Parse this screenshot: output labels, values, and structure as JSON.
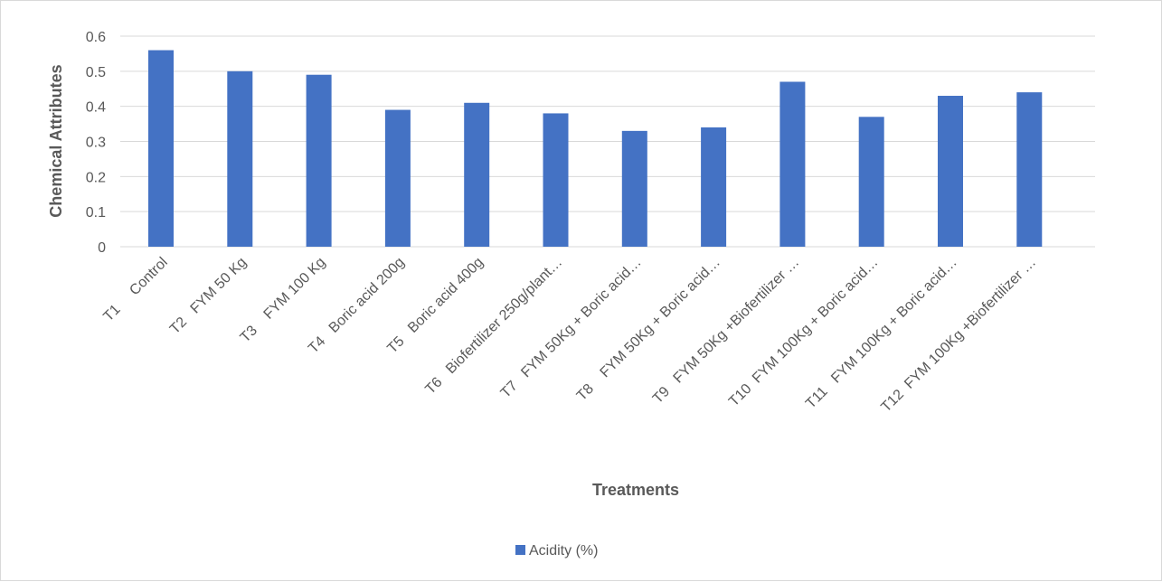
{
  "chart_data": {
    "type": "bar",
    "categories": [
      "T1     Control",
      "T2   FYM 50 Kg",
      "T3    FYM 100 Kg",
      "T4   Boric acid 200g",
      "T5   Boric acid 400g",
      "T6   Biofertilizer 250g/plant…",
      "T7   FYM 50Kg + Boric acid…",
      "T8    FYM 50Kg + Boric acid…",
      "T9   FYM 50Kg +Biofertilizer …",
      "T10  FYM 100Kg + Boric acid…",
      "T11   FYM 100Kg + Boric acid…",
      "T12  FYM 100Kg +Biofertilizer …"
    ],
    "series": [
      {
        "name": "Acidity (%)",
        "color": "#4472c4",
        "values": [
          0.56,
          0.5,
          0.49,
          0.39,
          0.41,
          0.38,
          0.33,
          0.34,
          0.47,
          0.37,
          0.43,
          0.44
        ]
      }
    ],
    "title": "",
    "xlabel": "Treatments",
    "ylabel": "Chemical Attributes",
    "ylim": [
      0,
      0.6
    ],
    "yticks": [
      "0",
      "0.1",
      "0.2",
      "0.3",
      "0.4",
      "0.5",
      "0.6"
    ],
    "grid": true,
    "gridColor": "#d9d9d9",
    "legend": "bottom"
  }
}
